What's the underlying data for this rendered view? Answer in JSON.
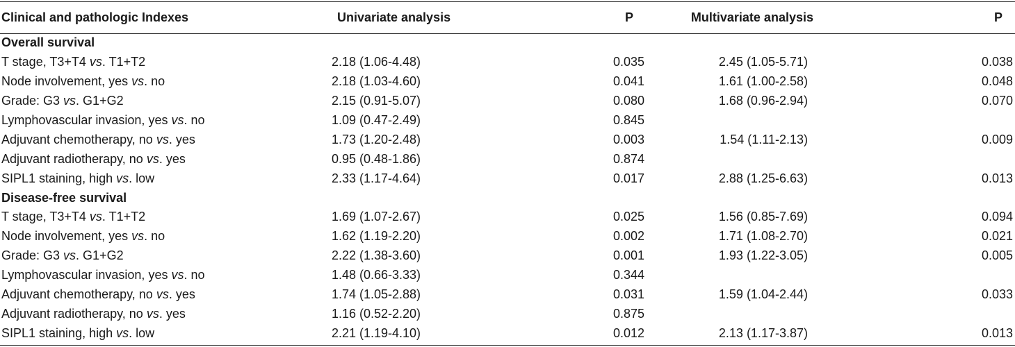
{
  "header": {
    "index": "Clinical and pathologic Indexes",
    "univariate": "Univariate analysis",
    "p1": "P",
    "multivariate": "Multivariate analysis",
    "p2": "P"
  },
  "sections": [
    {
      "title": "Overall survival",
      "rows": [
        {
          "pre": "T stage, T3+T4 ",
          "vs": "vs",
          "post": ". T1+T2",
          "uni": "2.18 (1.06-4.48)",
          "p_uni": "0.035",
          "multi": "2.45 (1.05-5.71)",
          "p_multi": "0.038"
        },
        {
          "pre": "Node involvement, yes ",
          "vs": "vs",
          "post": ". no",
          "uni": "2.18 (1.03-4.60)",
          "p_uni": "0.041",
          "multi": "1.61 (1.00-2.58)",
          "p_multi": "0.048"
        },
        {
          "pre": "Grade: G3 ",
          "vs": "vs",
          "post": ". G1+G2",
          "uni": "2.15 (0.91-5.07)",
          "p_uni": "0.080",
          "multi": "1.68 (0.96-2.94)",
          "p_multi": "0.070"
        },
        {
          "pre": "Lymphovascular invasion, yes ",
          "vs": "vs",
          "post": ". no",
          "uni": "1.09 (0.47-2.49)",
          "p_uni": "0.845",
          "multi": "",
          "p_multi": ""
        },
        {
          "pre": "Adjuvant chemotherapy, no ",
          "vs": "vs",
          "post": ". yes",
          "uni": "1.73 (1.20-2.48)",
          "p_uni": "0.003",
          "multi": "1.54 (1.11-2.13)",
          "p_multi": "0.009"
        },
        {
          "pre": "Adjuvant radiotherapy, no ",
          "vs": "vs",
          "post": ". yes",
          "uni": "0.95 (0.48-1.86)",
          "p_uni": "0.874",
          "multi": "",
          "p_multi": ""
        },
        {
          "pre": "SIPL1 staining, high ",
          "vs": "vs",
          "post": ". low",
          "uni": "2.33 (1.17-4.64)",
          "p_uni": "0.017",
          "multi": "2.88 (1.25-6.63)",
          "p_multi": "0.013"
        }
      ]
    },
    {
      "title": "Disease-free survival",
      "rows": [
        {
          "pre": "T stage, T3+T4 ",
          "vs": "vs",
          "post": ". T1+T2",
          "uni": "1.69 (1.07-2.67)",
          "p_uni": "0.025",
          "multi": "1.56 (0.85-7.69)",
          "p_multi": "0.094"
        },
        {
          "pre": "Node involvement, yes ",
          "vs": "vs",
          "post": ". no",
          "uni": "1.62 (1.19-2.20)",
          "p_uni": "0.002",
          "multi": "1.71 (1.08-2.70)",
          "p_multi": "0.021"
        },
        {
          "pre": "Grade: G3 ",
          "vs": "vs",
          "post": ". G1+G2",
          "uni": "2.22 (1.38-3.60)",
          "p_uni": "0.001",
          "multi": "1.93 (1.22-3.05)",
          "p_multi": "0.005"
        },
        {
          "pre": "Lymphovascular invasion, yes ",
          "vs": "vs",
          "post": ". no",
          "uni": "1.48 (0.66-3.33)",
          "p_uni": "0.344",
          "multi": "",
          "p_multi": ""
        },
        {
          "pre": "Adjuvant chemotherapy, no ",
          "vs": "vs",
          "post": ". yes",
          "uni": "1.74 (1.05-2.88)",
          "p_uni": "0.031",
          "multi": "1.59 (1.04-2.44)",
          "p_multi": "0.033"
        },
        {
          "pre": "Adjuvant radiotherapy, no ",
          "vs": "vs",
          "post": ". yes",
          "uni": "1.16 (0.52-2.20)",
          "p_uni": "0.875",
          "multi": "",
          "p_multi": ""
        },
        {
          "pre": "SIPL1 staining, high ",
          "vs": "vs",
          "post": ". low",
          "uni": "2.21 (1.19-4.10)",
          "p_uni": "0.012",
          "multi": "2.13 (1.17-3.87)",
          "p_multi": "0.013"
        }
      ]
    }
  ]
}
